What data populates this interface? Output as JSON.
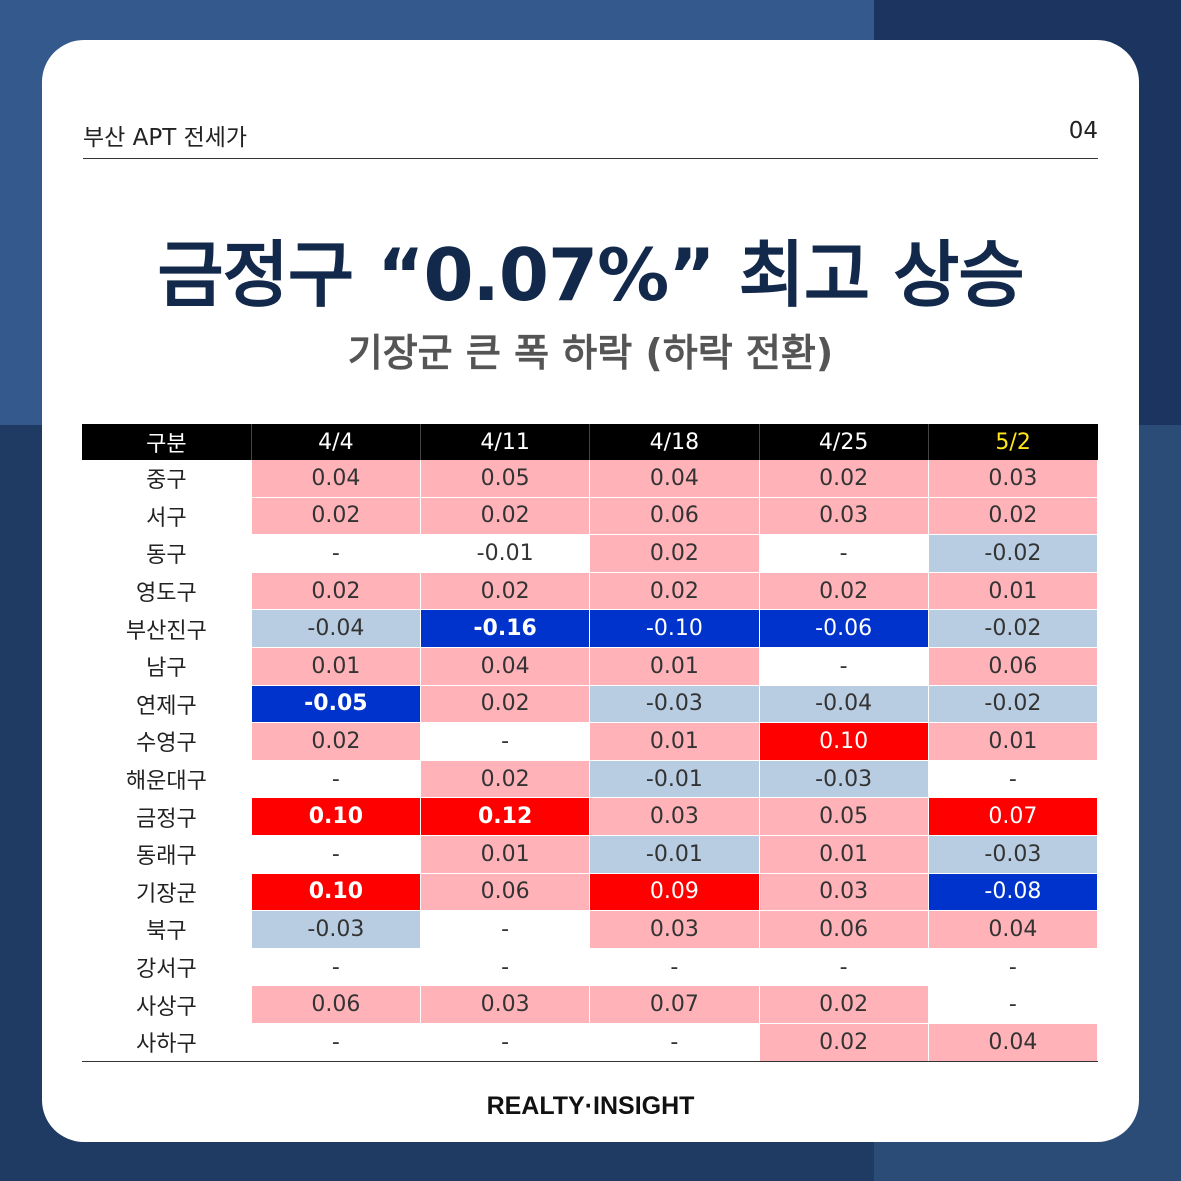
{
  "header": {
    "left": "부산 APT 전세가",
    "right": "04"
  },
  "title": "금정구 “0.07%” 최고 상승",
  "subtitle": "기장군 큰 폭 하락 (하락 전환)",
  "table": {
    "columns": [
      "구분",
      "4/4",
      "4/11",
      "4/18",
      "4/25",
      "5/2"
    ],
    "highlighted_column": "5/2",
    "colors": {
      "increase_light": "#ffb3b9",
      "increase_strong": "#ff0000",
      "decrease_light": "#b9cde2",
      "decrease_strong": "#0033cc",
      "highlight_header": "#ffe51a"
    },
    "rows": [
      {
        "label": "중구",
        "cells": [
          {
            "v": "0.04",
            "t": "p"
          },
          {
            "v": "0.05",
            "t": "p"
          },
          {
            "v": "0.04",
            "t": "p"
          },
          {
            "v": "0.02",
            "t": "p"
          },
          {
            "v": "0.03",
            "t": "p"
          }
        ]
      },
      {
        "label": "서구",
        "cells": [
          {
            "v": "0.02",
            "t": "p"
          },
          {
            "v": "0.02",
            "t": "p"
          },
          {
            "v": "0.06",
            "t": "p"
          },
          {
            "v": "0.03",
            "t": "p"
          },
          {
            "v": "0.02",
            "t": "p"
          }
        ]
      },
      {
        "label": "동구",
        "cells": [
          {
            "v": "-",
            "t": "n"
          },
          {
            "v": "-0.01",
            "t": "n"
          },
          {
            "v": "0.02",
            "t": "p"
          },
          {
            "v": "-",
            "t": "n"
          },
          {
            "v": "-0.02",
            "t": "m"
          }
        ]
      },
      {
        "label": "영도구",
        "cells": [
          {
            "v": "0.02",
            "t": "p"
          },
          {
            "v": "0.02",
            "t": "p"
          },
          {
            "v": "0.02",
            "t": "p"
          },
          {
            "v": "0.02",
            "t": "p"
          },
          {
            "v": "0.01",
            "t": "p"
          }
        ]
      },
      {
        "label": "부산진구",
        "cells": [
          {
            "v": "-0.04",
            "t": "m"
          },
          {
            "v": "-0.16",
            "t": "b",
            "bold": true
          },
          {
            "v": "-0.10",
            "t": "b"
          },
          {
            "v": "-0.06",
            "t": "b"
          },
          {
            "v": "-0.02",
            "t": "m"
          }
        ]
      },
      {
        "label": "남구",
        "cells": [
          {
            "v": "0.01",
            "t": "p"
          },
          {
            "v": "0.04",
            "t": "p"
          },
          {
            "v": "0.01",
            "t": "p"
          },
          {
            "v": "-",
            "t": "n"
          },
          {
            "v": "0.06",
            "t": "p"
          }
        ]
      },
      {
        "label": "연제구",
        "cells": [
          {
            "v": "-0.05",
            "t": "b",
            "bold": true
          },
          {
            "v": "0.02",
            "t": "p"
          },
          {
            "v": "-0.03",
            "t": "m"
          },
          {
            "v": "-0.04",
            "t": "m"
          },
          {
            "v": "-0.02",
            "t": "m"
          }
        ]
      },
      {
        "label": "수영구",
        "cells": [
          {
            "v": "0.02",
            "t": "p"
          },
          {
            "v": "-",
            "t": "n"
          },
          {
            "v": "0.01",
            "t": "p"
          },
          {
            "v": "0.10",
            "t": "r"
          },
          {
            "v": "0.01",
            "t": "p"
          }
        ]
      },
      {
        "label": "해운대구",
        "cells": [
          {
            "v": "-",
            "t": "n"
          },
          {
            "v": "0.02",
            "t": "p"
          },
          {
            "v": "-0.01",
            "t": "m"
          },
          {
            "v": "-0.03",
            "t": "m"
          },
          {
            "v": "-",
            "t": "n"
          }
        ]
      },
      {
        "label": "금정구",
        "cells": [
          {
            "v": "0.10",
            "t": "r",
            "bold": true
          },
          {
            "v": "0.12",
            "t": "r",
            "bold": true
          },
          {
            "v": "0.03",
            "t": "p"
          },
          {
            "v": "0.05",
            "t": "p"
          },
          {
            "v": "0.07",
            "t": "r"
          }
        ]
      },
      {
        "label": "동래구",
        "cells": [
          {
            "v": "-",
            "t": "n"
          },
          {
            "v": "0.01",
            "t": "p"
          },
          {
            "v": "-0.01",
            "t": "m"
          },
          {
            "v": "0.01",
            "t": "p"
          },
          {
            "v": "-0.03",
            "t": "m"
          }
        ]
      },
      {
        "label": "기장군",
        "cells": [
          {
            "v": "0.10",
            "t": "r",
            "bold": true
          },
          {
            "v": "0.06",
            "t": "p"
          },
          {
            "v": "0.09",
            "t": "r"
          },
          {
            "v": "0.03",
            "t": "p"
          },
          {
            "v": "-0.08",
            "t": "b"
          }
        ]
      },
      {
        "label": "북구",
        "cells": [
          {
            "v": "-0.03",
            "t": "m"
          },
          {
            "v": "-",
            "t": "n"
          },
          {
            "v": "0.03",
            "t": "p"
          },
          {
            "v": "0.06",
            "t": "p"
          },
          {
            "v": "0.04",
            "t": "p"
          }
        ]
      },
      {
        "label": "강서구",
        "cells": [
          {
            "v": "-",
            "t": "n"
          },
          {
            "v": "-",
            "t": "n"
          },
          {
            "v": "-",
            "t": "n"
          },
          {
            "v": "-",
            "t": "n"
          },
          {
            "v": "-",
            "t": "n"
          }
        ]
      },
      {
        "label": "사상구",
        "cells": [
          {
            "v": "0.06",
            "t": "p"
          },
          {
            "v": "0.03",
            "t": "p"
          },
          {
            "v": "0.07",
            "t": "p"
          },
          {
            "v": "0.02",
            "t": "p"
          },
          {
            "v": "-",
            "t": "n"
          }
        ]
      },
      {
        "label": "사하구",
        "cells": [
          {
            "v": "-",
            "t": "n"
          },
          {
            "v": "-",
            "t": "n"
          },
          {
            "v": "-",
            "t": "n"
          },
          {
            "v": "0.02",
            "t": "p"
          },
          {
            "v": "0.04",
            "t": "p"
          }
        ]
      }
    ]
  },
  "brand": "REALTY·INSIGHT"
}
